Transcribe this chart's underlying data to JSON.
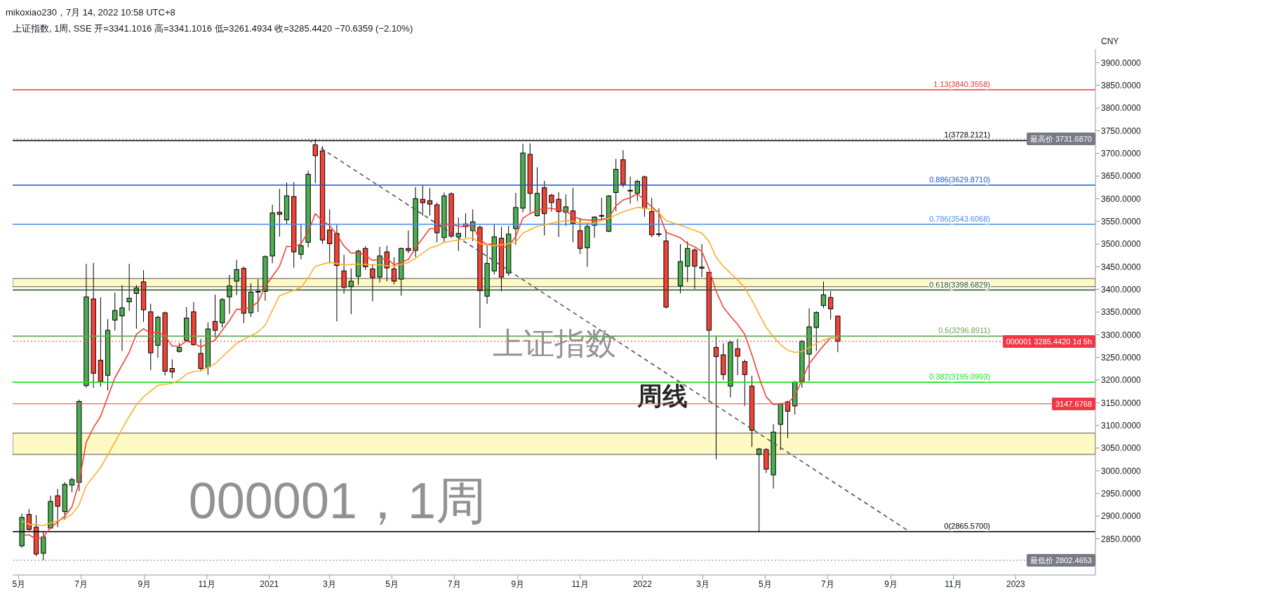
{
  "chart_data": {
    "type": "candlestick",
    "title": "上证指数, 1周, SSE 开=3341.1016 高=3341.1016 低=3261.4934 收=3285.4420 −70.6359 (−2.10%)",
    "subtitle": "mikoxiao230，7月 14, 2022 10:58 UTC+8",
    "x": [
      "2020-05-04",
      "2020-05-11",
      "2020-05-18",
      "2020-05-25",
      "2020-06-01",
      "2020-06-08",
      "2020-06-15",
      "2020-06-22",
      "2020-06-29",
      "2020-07-06",
      "2020-07-13",
      "2020-07-20",
      "2020-07-27",
      "2020-08-03",
      "2020-08-10",
      "2020-08-17",
      "2020-08-24",
      "2020-08-31",
      "2020-09-07",
      "2020-09-14",
      "2020-09-21",
      "2020-09-28",
      "2020-10-05",
      "2020-10-12",
      "2020-10-19",
      "2020-10-26",
      "2020-11-02",
      "2020-11-09",
      "2020-11-16",
      "2020-11-23",
      "2020-11-30",
      "2020-12-07",
      "2020-12-14",
      "2020-12-21",
      "2020-12-28",
      "2021-01-04",
      "2021-01-11",
      "2021-01-18",
      "2021-01-25",
      "2021-02-01",
      "2021-02-08",
      "2021-02-15",
      "2021-02-22",
      "2021-03-01",
      "2021-03-08",
      "2021-03-15",
      "2021-03-22",
      "2021-03-29",
      "2021-04-05",
      "2021-04-12",
      "2021-04-19",
      "2021-04-26",
      "2021-05-03",
      "2021-05-10",
      "2021-05-17",
      "2021-05-24",
      "2021-05-31",
      "2021-06-07",
      "2021-06-14",
      "2021-06-21",
      "2021-06-28",
      "2021-07-05",
      "2021-07-12",
      "2021-07-19",
      "2021-07-26",
      "2021-08-02",
      "2021-08-09",
      "2021-08-16",
      "2021-08-23",
      "2021-08-30",
      "2021-09-06",
      "2021-09-13",
      "2021-09-20",
      "2021-09-27",
      "2021-10-04",
      "2021-10-11",
      "2021-10-18",
      "2021-10-25",
      "2021-11-01",
      "2021-11-08",
      "2021-11-15",
      "2021-11-22",
      "2021-11-29",
      "2021-12-06",
      "2021-12-13",
      "2021-12-20",
      "2021-12-27",
      "2022-01-03",
      "2022-01-10",
      "2022-01-17",
      "2022-01-24",
      "2022-02-07",
      "2022-02-14",
      "2022-02-21",
      "2022-02-28",
      "2022-03-07",
      "2022-03-14",
      "2022-03-21",
      "2022-03-28",
      "2022-04-04",
      "2022-04-11",
      "2022-04-18",
      "2022-04-25",
      "2022-05-02",
      "2022-05-09",
      "2022-05-16",
      "2022-05-23",
      "2022-05-30",
      "2022-06-06",
      "2022-06-13",
      "2022-06-20",
      "2022-06-27",
      "2022-07-04",
      "2022-07-11"
    ],
    "ohlc": [
      [
        2834.4,
        2905.6,
        2830,
        2897
      ],
      [
        2903.6,
        2915.7,
        2867,
        2870.5
      ],
      [
        2875.5,
        2902,
        2811.4,
        2816.4
      ],
      [
        2818,
        2864.5,
        2802.4653,
        2854
      ],
      [
        2873.6,
        2944.8,
        2873,
        2932.2
      ],
      [
        2944.8,
        2959.8,
        2875.5,
        2921.7
      ],
      [
        2909.7,
        2975,
        2892,
        2969.8
      ],
      [
        2968.3,
        2984.9,
        2952.3,
        2980.3
      ],
      [
        2974.3,
        3157,
        2954.8,
        3152.8
      ],
      [
        3187.9,
        3456.2,
        3183,
        3383.5
      ],
      [
        3379,
        3458.7,
        3183,
        3215
      ],
      [
        3243.6,
        3382.5,
        3185.4,
        3197
      ],
      [
        3210.5,
        3334.3,
        3177,
        3309.8
      ],
      [
        3332.3,
        3393,
        3309.3,
        3353.4
      ],
      [
        3341.4,
        3409.6,
        3264,
        3359.4
      ],
      [
        3372.5,
        3456.2,
        3352.9,
        3380.5
      ],
      [
        3391,
        3409.6,
        3313.3,
        3403
      ],
      [
        3416.6,
        3442.2,
        3328.3,
        3355
      ],
      [
        3350.4,
        3368.4,
        3222,
        3260.1
      ],
      [
        3276.7,
        3342,
        3249.1,
        3338.4
      ],
      [
        3348.4,
        3350.9,
        3210,
        3219.5
      ],
      [
        3225.5,
        3245.6,
        3204,
        3218
      ],
      [
        3263.1,
        3281.7,
        3260.6,
        3272.1
      ],
      [
        3287.2,
        3360.9,
        3285,
        3336.8
      ],
      [
        3350.4,
        3372,
        3275,
        3278.2
      ],
      [
        3258.7,
        3290.8,
        3220.6,
        3225.6
      ],
      [
        3228.6,
        3327.4,
        3211.6,
        3312.8
      ],
      [
        3329.4,
        3388.6,
        3293.3,
        3309.8
      ],
      [
        3326.4,
        3381,
        3315.9,
        3377.5
      ],
      [
        3383.5,
        3432.2,
        3346,
        3407.6
      ],
      [
        3418.1,
        3465.3,
        3387.5,
        3443.7
      ],
      [
        3446.2,
        3450.2,
        3325.9,
        3347.4
      ],
      [
        3348.4,
        3413.6,
        3339.4,
        3394.1
      ],
      [
        3395,
        3422.6,
        3350,
        3395.5
      ],
      [
        3395.6,
        3474.8,
        3375,
        3472.3
      ],
      [
        3473.8,
        3586.6,
        3457.8,
        3568.6
      ],
      [
        3570,
        3621.7,
        3516.4,
        3565.6
      ],
      [
        3553.5,
        3635.8,
        3544,
        3606.2
      ],
      [
        3604.7,
        3636.8,
        3447.7,
        3482.8
      ],
      [
        3477.3,
        3543,
        3466.3,
        3496.4
      ],
      [
        3503.9,
        3661.8,
        3492.9,
        3653.8
      ],
      [
        3719,
        3731.687,
        3634.3,
        3694.9
      ],
      [
        3705.5,
        3716,
        3500.4,
        3508.9
      ],
      [
        3531,
        3576.6,
        3457.2,
        3500.9
      ],
      [
        3523.4,
        3542.5,
        3329.4,
        3452.7
      ],
      [
        3440.7,
        3476.3,
        3390.6,
        3404.6
      ],
      [
        3406.1,
        3446.2,
        3345.4,
        3418.1
      ],
      [
        3428.7,
        3487.8,
        3410.1,
        3484.3
      ],
      [
        3490.3,
        3495.3,
        3443.2,
        3450.2
      ],
      [
        3445.2,
        3456.2,
        3373.5,
        3426.2
      ],
      [
        3427.2,
        3493.9,
        3415.1,
        3473.8
      ],
      [
        3482.8,
        3496.4,
        3417.6,
        3447.2
      ],
      [
        3445.2,
        3470.8,
        3411.1,
        3418.1
      ],
      [
        3422.6,
        3492,
        3386,
        3490.3
      ],
      [
        3490.3,
        3530,
        3479.8,
        3485.8
      ],
      [
        3485.8,
        3625.7,
        3471.3,
        3600.2
      ],
      [
        3598.7,
        3628.7,
        3562.5,
        3591.1
      ],
      [
        3595.6,
        3623.2,
        3563,
        3588.1
      ],
      [
        3586.6,
        3591.6,
        3503.9,
        3524.9
      ],
      [
        3514.4,
        3613.7,
        3503.9,
        3606.2
      ],
      [
        3610.7,
        3614.2,
        3513.9,
        3517.4
      ],
      [
        3515.9,
        3558.5,
        3484.8,
        3523.4
      ],
      [
        3544.5,
        3567.6,
        3513.9,
        3538.5
      ],
      [
        3529.5,
        3576.6,
        3506.4,
        3549
      ],
      [
        3537,
        3541,
        3314.3,
        3397.1
      ],
      [
        3385,
        3500,
        3368,
        3457.2
      ],
      [
        3440.7,
        3543,
        3433,
        3515.9
      ],
      [
        3512.9,
        3538,
        3395.6,
        3427.2
      ],
      [
        3436.2,
        3540,
        3430,
        3521.9
      ],
      [
        3534,
        3612.7,
        3498,
        3580.6
      ],
      [
        3579.1,
        3721,
        3570,
        3700.9
      ],
      [
        3697.9,
        3722,
        3569.1,
        3611.7
      ],
      [
        3562.5,
        3669.4,
        3560.5,
        3611.7
      ],
      [
        3624.2,
        3639.3,
        3519,
        3567.1
      ],
      [
        3607.7,
        3610.7,
        3571.6,
        3591.6
      ],
      [
        3598.7,
        3614.2,
        3515.4,
        3571.6
      ],
      [
        3570.1,
        3609.7,
        3540,
        3582.1
      ],
      [
        3573.1,
        3624.2,
        3503.9,
        3546
      ],
      [
        3529.5,
        3558,
        3477.8,
        3490.3
      ],
      [
        3491.8,
        3544,
        3449.7,
        3538.5
      ],
      [
        3541.5,
        3561.5,
        3514,
        3559.5
      ],
      [
        3562.5,
        3601.7,
        3555,
        3563
      ],
      [
        3528,
        3607.7,
        3526.5,
        3606.2
      ],
      [
        3613.7,
        3687.9,
        3572.6,
        3664.8
      ],
      [
        3685.9,
        3707,
        3625,
        3631.7
      ],
      [
        3618,
        3648.8,
        3589.1,
        3618.5
      ],
      [
        3612.2,
        3641.8,
        3595.1,
        3638.3
      ],
      [
        3648.3,
        3650.8,
        3560,
        3579.1
      ],
      [
        3571.6,
        3601.7,
        3515,
        3520.4
      ],
      [
        3522.5,
        3578.6,
        3515.4,
        3522.4
      ],
      [
        3506.9,
        3531.5,
        3357.5,
        3361
      ],
      [
        3407.6,
        3499.9,
        3391.1,
        3461.3
      ],
      [
        3451.2,
        3506,
        3416,
        3490.3
      ],
      [
        3486.8,
        3491,
        3401,
        3451.2
      ],
      [
        3449.2,
        3499.9,
        3427.2,
        3446.7
      ],
      [
        3437.7,
        3437.7,
        3151,
        3309.9
      ],
      [
        3272.2,
        3298.3,
        3025,
        3251.7
      ],
      [
        3255.7,
        3280.8,
        3200,
        3212.1
      ],
      [
        3186.5,
        3287.8,
        3162,
        3283.3
      ],
      [
        3269.2,
        3290.8,
        3210.6,
        3252.7
      ],
      [
        3240.7,
        3245,
        3142.9,
        3212.1
      ],
      [
        3186.5,
        3209.6,
        3052.6,
        3089.2
      ],
      [
        3036.1,
        3050,
        2865.57,
        3048.1
      ],
      [
        3046.6,
        3050,
        2995,
        3003.5
      ],
      [
        2990.9,
        3102.8,
        2960.9,
        3085.2
      ],
      [
        3102.3,
        3149,
        3045.1,
        3147.4
      ],
      [
        3151.9,
        3154,
        3071.7,
        3131.4
      ],
      [
        3142.9,
        3198,
        3124.3,
        3195.5
      ],
      [
        3197,
        3288,
        3183,
        3285.8
      ],
      [
        3257.2,
        3358.5,
        3198,
        3317.4
      ],
      [
        3315.9,
        3352,
        3264.2,
        3349
      ],
      [
        3364.5,
        3417.2,
        3358.5,
        3388.1
      ],
      [
        3382.1,
        3396.1,
        3333.4,
        3357
      ],
      [
        3341.1016,
        3341.1016,
        3261.4934,
        3285.442
      ]
    ],
    "colors": [
      "#4caf50",
      "#f44336",
      "#f44336",
      "#4caf50",
      "#4caf50",
      "#f44336",
      "#4caf50",
      "#4caf50",
      "#4caf50",
      "#4caf50",
      "#f44336",
      "#f44336",
      "#4caf50",
      "#4caf50",
      "#4caf50",
      "#4caf50",
      "#4caf50",
      "#f44336",
      "#f44336",
      "#4caf50",
      "#f44336",
      "#f44336",
      "#4caf50",
      "#4caf50",
      "#f44336",
      "#f44336",
      "#4caf50",
      "#f44336",
      "#4caf50",
      "#4caf50",
      "#4caf50",
      "#f44336",
      "#4caf50",
      "#4caf50",
      "#4caf50",
      "#4caf50",
      "#f44336",
      "#4caf50",
      "#f44336",
      "#4caf50",
      "#4caf50",
      "#f44336",
      "#f44336",
      "#f44336",
      "#f44336",
      "#f44336",
      "#4caf50",
      "#4caf50",
      "#f44336",
      "#f44336",
      "#4caf50",
      "#f44336",
      "#f44336",
      "#4caf50",
      "#f44336",
      "#4caf50",
      "#f44336",
      "#f44336",
      "#f44336",
      "#4caf50",
      "#f44336",
      "#4caf50",
      "#f44336",
      "#4caf50",
      "#f44336",
      "#4caf50",
      "#4caf50",
      "#f44336",
      "#4caf50",
      "#4caf50",
      "#4caf50",
      "#f44336",
      "#4caf50",
      "#f44336",
      "#f44336",
      "#f44336",
      "#4caf50",
      "#f44336",
      "#f44336",
      "#4caf50",
      "#4caf50",
      "#4caf50",
      "#4caf50",
      "#4caf50",
      "#f44336",
      "#4caf50",
      "#4caf50",
      "#f44336",
      "#f44336",
      "#f44336",
      "#f44336",
      "#4caf50",
      "#4caf50",
      "#f44336",
      "#f44336",
      "#f44336",
      "#f44336",
      "#f44336",
      "#4caf50",
      "#f44336",
      "#f44336",
      "#f44336",
      "#4caf50",
      "#f44336",
      "#4caf50",
      "#4caf50",
      "#f44336",
      "#4caf50",
      "#4caf50",
      "#4caf50",
      "#4caf50",
      "#4caf50",
      "#f44336",
      "#f44336"
    ],
    "series": [
      {
        "type": "line",
        "color": "#f44336",
        "x": [
          "2020-05-04",
          "2020-05-11",
          "2020-05-18",
          "2020-05-25",
          "2020-06-01",
          "2020-06-15",
          "2020-06-22",
          "2020-06-29",
          "2020-07-06",
          "2020-07-13",
          "2020-07-20",
          "2020-08-03",
          "2020-08-17",
          "2020-08-24",
          "2020-08-31",
          "2020-09-07",
          "2020-09-14",
          "2020-09-21",
          "2020-09-28",
          "2020-10-05",
          "2020-10-12",
          "2020-10-19",
          "2020-10-26",
          "2020-11-02",
          "2020-11-09",
          "2020-11-23",
          "2020-11-30",
          "2020-12-07",
          "2020-12-14",
          "2020-12-21",
          "2020-12-28",
          "2021-01-11",
          "2021-01-18",
          "2021-01-25",
          "2021-02-01",
          "2021-02-08",
          "2021-02-15",
          "2021-02-22",
          "2021-03-01",
          "2021-03-08",
          "2021-03-15",
          "2021-03-22",
          "2021-03-29",
          "2021-04-05",
          "2021-04-12",
          "2021-04-19",
          "2021-04-26",
          "2021-05-03",
          "2021-05-17",
          "2021-05-24",
          "2021-06-07",
          "2021-06-14",
          "2021-06-21",
          "2021-06-28",
          "2021-07-05",
          "2021-07-12",
          "2021-07-19",
          "2021-07-26",
          "2021-08-02",
          "2021-08-09",
          "2021-08-16",
          "2021-08-23",
          "2021-08-30",
          "2021-09-06",
          "2021-09-13",
          "2021-09-20",
          "2021-09-27",
          "2021-10-04",
          "2021-10-18",
          "2021-11-01",
          "2021-11-15",
          "2021-11-29",
          "2021-12-06",
          "2021-12-13",
          "2021-12-20",
          "2021-12-27",
          "2022-01-03",
          "2022-01-10",
          "2022-01-17",
          "2022-01-24",
          "2022-02-07",
          "2022-02-14",
          "2022-02-21",
          "2022-02-28",
          "2022-03-07",
          "2022-03-14",
          "2022-03-21",
          "2022-03-28",
          "2022-04-04",
          "2022-04-11",
          "2022-04-18",
          "2022-04-25",
          "2022-05-02",
          "2022-05-09",
          "2022-05-16",
          "2022-05-23",
          "2022-05-30",
          "2022-06-06",
          "2022-06-13",
          "2022-06-20",
          "2022-06-27",
          "2022-07-04",
          "2022-07-11"
        ],
        "values": [
          2857,
          2859,
          2849,
          2854,
          2874,
          2900,
          2920,
          2975,
          3063,
          3095,
          3120,
          3205,
          3261,
          3301,
          3313,
          3303,
          3306,
          3298,
          3275,
          3275,
          3286,
          3281,
          3273,
          3281,
          3288,
          3331,
          3356,
          3356,
          3361,
          3372,
          3406,
          3451,
          3495,
          3494,
          3501,
          3526,
          3567,
          3551,
          3541,
          3521,
          3496,
          3480,
          3481,
          3476,
          3464,
          3466,
          3469,
          3454,
          3466,
          3491,
          3534,
          3534,
          3544,
          3544,
          3539,
          3539,
          3541,
          3509,
          3499,
          3501,
          3491,
          3496,
          3516,
          3557,
          3567,
          3574,
          3579,
          3579,
          3572,
          3554,
          3552,
          3557,
          3584,
          3597,
          3602,
          3611,
          3597,
          3582,
          3569,
          3526,
          3514,
          3501,
          3494,
          3484,
          3446,
          3396,
          3361,
          3341,
          3323,
          3301,
          3256,
          3206,
          3163,
          3146,
          3148,
          3149,
          3165,
          3200,
          3236,
          3256,
          3276,
          3293,
          3293
        ]
      },
      {
        "type": "line",
        "color": "#fbb02d",
        "x": [
          "2020-05-04",
          "2020-05-11",
          "2020-05-25",
          "2020-06-01",
          "2020-06-15",
          "2020-06-22",
          "2020-06-29",
          "2020-07-06",
          "2020-07-20",
          "2020-08-03",
          "2020-08-17",
          "2020-08-24",
          "2020-08-31",
          "2020-09-14",
          "2020-09-28",
          "2020-10-05",
          "2020-10-12",
          "2020-10-19",
          "2020-10-26",
          "2020-11-09",
          "2020-11-16",
          "2020-11-30",
          "2020-12-21",
          "2020-12-28",
          "2021-01-11",
          "2021-02-01",
          "2021-02-08",
          "2021-02-15",
          "2021-03-01",
          "2021-03-15",
          "2021-03-29",
          "2021-04-12",
          "2021-04-19",
          "2021-05-03",
          "2021-05-17",
          "2021-05-24",
          "2021-06-07",
          "2021-06-14",
          "2021-06-21",
          "2021-07-05",
          "2021-07-19",
          "2021-07-26",
          "2021-08-09",
          "2021-08-23",
          "2021-08-30",
          "2021-09-06",
          "2021-09-20",
          "2021-10-04",
          "2021-10-18",
          "2021-11-01",
          "2021-11-15",
          "2021-11-29",
          "2021-12-13",
          "2021-12-27",
          "2022-01-10",
          "2022-01-17",
          "2022-01-24",
          "2022-02-14",
          "2022-02-28",
          "2022-03-07",
          "2022-03-14",
          "2022-03-21",
          "2022-03-28",
          "2022-04-04",
          "2022-04-11",
          "2022-04-18",
          "2022-04-25",
          "2022-05-02",
          "2022-05-09",
          "2022-05-16",
          "2022-05-23",
          "2022-05-30",
          "2022-06-06",
          "2022-06-13",
          "2022-06-20",
          "2022-06-27",
          "2022-07-04",
          "2022-07-11"
        ],
        "values": [
          2889,
          2882,
          2879,
          2885,
          2895,
          2904,
          2925,
          2967,
          3007,
          3063,
          3120,
          3145,
          3163,
          3188,
          3193,
          3200,
          3213,
          3219,
          3220,
          3236,
          3251,
          3281,
          3306,
          3321,
          3386,
          3404,
          3426,
          3451,
          3460,
          3454,
          3456,
          3454,
          3454,
          3451,
          3459,
          3469,
          3491,
          3496,
          3504,
          3509,
          3514,
          3501,
          3496,
          3501,
          3504,
          3524,
          3539,
          3546,
          3552,
          3547,
          3546,
          3557,
          3571,
          3581,
          3577,
          3569,
          3552,
          3536,
          3524,
          3506,
          3471,
          3451,
          3436,
          3421,
          3404,
          3376,
          3346,
          3316,
          3296,
          3278,
          3266,
          3261,
          3263,
          3271,
          3281,
          3288,
          3293,
          3293
        ]
      },
      {
        "type": "line",
        "color": "#555555",
        "line_style": "dashed",
        "x": [
          "2021-02-08",
          "2022-09-19"
        ],
        "values": [
          3730,
          2866
        ]
      }
    ],
    "xlim": [
      "2020-04-25",
      "2023-03-20"
    ],
    "xticks": [
      {
        "value": "2020-05-01",
        "label": "5月"
      },
      {
        "value": "2020-07-01",
        "label": "7月"
      },
      {
        "value": "2020-09-01",
        "label": "9月"
      },
      {
        "value": "2020-11-01",
        "label": "11月"
      },
      {
        "value": "2021-01-01",
        "label": "2021"
      },
      {
        "value": "2021-03-01",
        "label": "3月"
      },
      {
        "value": "2021-05-01",
        "label": "5月"
      },
      {
        "value": "2021-07-01",
        "label": "7月"
      },
      {
        "value": "2021-09-01",
        "label": "9月"
      },
      {
        "value": "2021-11-01",
        "label": "11月"
      },
      {
        "value": "2022-01-01",
        "label": "2022"
      },
      {
        "value": "2022-03-01",
        "label": "3月"
      },
      {
        "value": "2022-05-01",
        "label": "5月"
      },
      {
        "value": "2022-07-01",
        "label": "7月"
      },
      {
        "value": "2022-09-01",
        "label": "9月"
      },
      {
        "value": "2022-11-01",
        "label": "11月"
      },
      {
        "value": "2023-01-01",
        "label": "2023"
      }
    ],
    "ylim": [
      2770,
      3930
    ],
    "yticks": [
      {
        "value": 2850,
        "label": "2850.0000"
      },
      {
        "value": 2900,
        "label": "2900.0000"
      },
      {
        "value": 2950,
        "label": "2950.0000"
      },
      {
        "value": 3000,
        "label": "3000.0000"
      },
      {
        "value": 3050,
        "label": "3050.0000"
      },
      {
        "value": 3100,
        "label": "3100.0000"
      },
      {
        "value": 3150,
        "label": "3150.0000"
      },
      {
        "value": 3200,
        "label": "3200.0000"
      },
      {
        "value": 3250,
        "label": "3250.0000"
      },
      {
        "value": 3300,
        "label": "3300.0000"
      },
      {
        "value": 3350,
        "label": "3350.0000"
      },
      {
        "value": 3400,
        "label": "3400.0000"
      },
      {
        "value": 3450,
        "label": "3450.0000"
      },
      {
        "value": 3500,
        "label": "3500.0000"
      },
      {
        "value": 3550,
        "label": "3550.0000"
      },
      {
        "value": 3600,
        "label": "3600.0000"
      },
      {
        "value": 3650,
        "label": "3650.0000"
      },
      {
        "value": 3700,
        "label": "3700.0000"
      },
      {
        "value": 3750,
        "label": "3750.0000"
      },
      {
        "value": 3800,
        "label": "3800.0000"
      },
      {
        "value": 3850,
        "label": "3850.0000"
      },
      {
        "value": 3900,
        "label": "3900.0000"
      }
    ],
    "ref_lines": [
      {
        "axis": "y",
        "value": 3840.3558,
        "label": "1.13(3840.3558)",
        "color": "#e53935"
      },
      {
        "axis": "y",
        "value": 3728.2121,
        "label": "1(3728.2121)",
        "color": "#000000"
      },
      {
        "axis": "y",
        "value": 3629.871,
        "label": "0.886(3629.8710)",
        "color": "#1e56c8"
      },
      {
        "axis": "y",
        "value": 3543.6068,
        "label": "0.786(3543.6068)",
        "color": "#4a8af0"
      },
      {
        "axis": "y",
        "value": 3398.6829,
        "label": "0.618(3398.6829)",
        "color": "#274e13"
      },
      {
        "axis": "y",
        "value": 3296.8911,
        "label": "0.5(3296.8911)",
        "color": "#6aa84f"
      },
      {
        "axis": "y",
        "value": 3195.0993,
        "label": "0.382(3195.0993)",
        "color": "#22dd22"
      },
      {
        "axis": "y",
        "value": 2865.57,
        "label": "0(2865.5700)",
        "color": "#000000"
      },
      {
        "axis": "y",
        "value": 3147.6768,
        "label": "3147.6768",
        "color": "#f23645",
        "line_style": "solid"
      },
      {
        "axis": "y",
        "value": 3731.687,
        "label": "最高价 3731.6870",
        "color": "#787b86",
        "line_style": "dotted"
      },
      {
        "axis": "y",
        "value": 3285.442,
        "label": "000001 3285.4420 1d 5h",
        "color": "#f23645",
        "line_style": "dotted"
      },
      {
        "axis": "y",
        "value": 2802.4653,
        "label": "最低价 2802.4653",
        "color": "#787b86",
        "line_style": "dotted"
      }
    ],
    "bands": [
      {
        "axis": "y",
        "from": 3406,
        "to": 3424,
        "color": "#fff59d"
      },
      {
        "axis": "y",
        "from": 3036,
        "to": 3083,
        "color": "#fff59d"
      }
    ],
    "annotations": [
      "000001，1周",
      "上证指数",
      "周线",
      "CNY"
    ]
  }
}
